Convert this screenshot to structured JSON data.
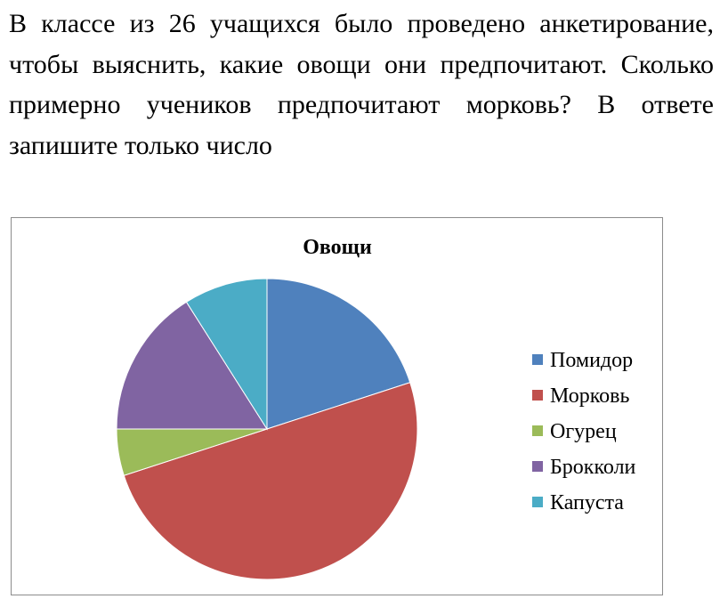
{
  "question": {
    "text": "В классе из 26 учащихся было проведено анкетирование, чтобы выяснить, какие овощи они предпочитают. Сколько примерно учеников предпочитают морковь? В ответе запишите только число"
  },
  "chart_data": {
    "type": "pie",
    "title": "Овощи",
    "categories": [
      "Помидор",
      "Морковь",
      "Огурец",
      "Брокколи",
      "Капуста"
    ],
    "values": [
      20,
      50,
      5,
      16,
      9
    ],
    "colors": [
      "#4f81bd",
      "#c0504d",
      "#9bbb59",
      "#8064a2",
      "#4bacc6"
    ],
    "legend": "right",
    "start_angle": "top",
    "direction": "clockwise"
  }
}
